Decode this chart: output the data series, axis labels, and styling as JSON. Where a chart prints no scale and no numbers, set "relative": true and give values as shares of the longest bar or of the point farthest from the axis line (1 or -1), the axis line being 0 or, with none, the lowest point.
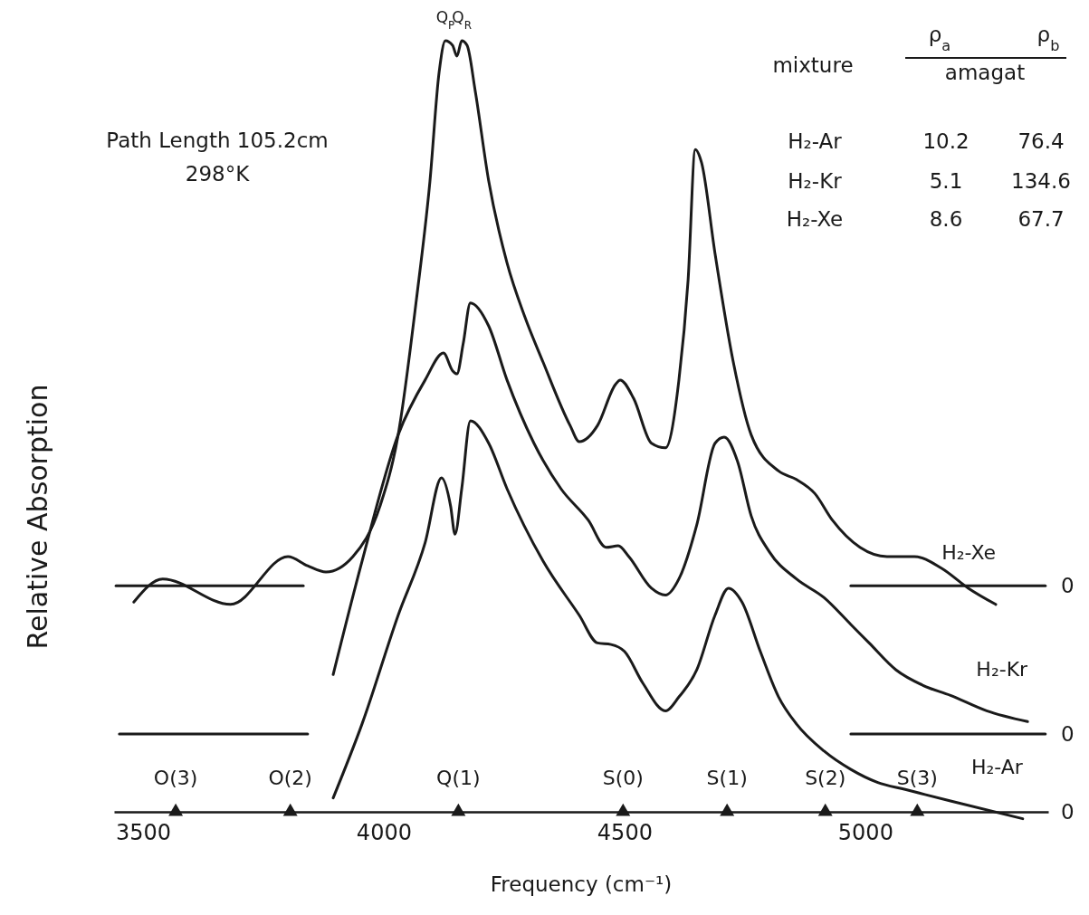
{
  "chart_data": {
    "type": "line",
    "relative": true,
    "xlabel": "Frequency  (cm⁻¹)",
    "ylabel": "Relative Absorption",
    "xlim": [
      3440,
      5380
    ],
    "xticks": [
      3500,
      4000,
      4500,
      5000
    ],
    "grid": false,
    "legend": false,
    "line_style": "solid",
    "series": [
      {
        "name": "H₂-Xe",
        "color": "#1a1a1a",
        "x": [
          3481,
          3541,
          3682,
          3801,
          3842,
          3880,
          3936,
          3992,
          4030,
          4068,
          4096,
          4115,
          4128,
          4143,
          4152,
          4162,
          4173,
          4190,
          4218,
          4256,
          4293,
          4331,
          4387,
          4406,
          4444,
          4481,
          4491,
          4519,
          4556,
          4585,
          4613,
          4632,
          4647,
          4660,
          4688,
          4726,
          4763,
          4820,
          4857,
          4895,
          4932,
          4989,
          5045,
          5102,
          5158,
          5214,
          5271
        ],
        "values": [
          0.272,
          0.302,
          0.269,
          0.331,
          0.319,
          0.311,
          0.331,
          0.396,
          0.489,
          0.665,
          0.818,
          0.959,
          1,
          0.994,
          0.98,
          1,
          0.994,
          0.935,
          0.818,
          0.712,
          0.642,
          0.583,
          0.501,
          0.48,
          0.501,
          0.554,
          0.56,
          0.536,
          0.478,
          0.472,
          0.56,
          0.689,
          0.859,
          0.842,
          0.724,
          0.583,
          0.489,
          0.442,
          0.431,
          0.413,
          0.378,
          0.343,
          0.331,
          0.331,
          0.316,
          0.29,
          0.269
        ]
      },
      {
        "name": "H₂-Kr",
        "color": "#1a1a1a",
        "x": [
          3895,
          3955,
          4030,
          4086,
          4124,
          4143,
          4152,
          4165,
          4180,
          4218,
          4256,
          4312,
          4368,
          4425,
          4462,
          4487,
          4509,
          4556,
          4585,
          4613,
          4650,
          4688,
          4707,
          4735,
          4763,
          4801,
          4857,
          4914,
          4970,
          5008,
          5064,
          5120,
          5177,
          5252,
          5337
        ],
        "values": [
          0.178,
          0.325,
          0.489,
          0.56,
          0.595,
          0.572,
          0.568,
          0.607,
          0.66,
          0.63,
          0.56,
          0.478,
          0.419,
          0.378,
          0.343,
          0.345,
          0.331,
          0.29,
          0.281,
          0.302,
          0.372,
          0.478,
          0.486,
          0.454,
          0.384,
          0.337,
          0.302,
          0.278,
          0.243,
          0.219,
          0.184,
          0.164,
          0.151,
          0.131,
          0.117
        ]
      },
      {
        "name": "H₂-Ar",
        "color": "#1a1a1a",
        "x": [
          3895,
          3955,
          4030,
          4086,
          4120,
          4139,
          4148,
          4162,
          4180,
          4218,
          4256,
          4331,
          4406,
          4444,
          4472,
          4500,
          4538,
          4585,
          4613,
          4650,
          4688,
          4716,
          4744,
          4782,
          4820,
          4857,
          4914,
          4970,
          5026,
          5083,
          5177,
          5327
        ],
        "values": [
          0.018,
          0.114,
          0.255,
          0.349,
          0.433,
          0.396,
          0.36,
          0.419,
          0.507,
          0.478,
          0.419,
          0.325,
          0.255,
          0.219,
          0.217,
          0.208,
          0.167,
          0.131,
          0.149,
          0.184,
          0.255,
          0.29,
          0.272,
          0.208,
          0.149,
          0.114,
          0.079,
          0.055,
          0.038,
          0.029,
          0.014,
          -0.009
        ]
      },
      {
        "type": "line",
        "color": "#1a1a1a",
        "x": [
          3444,
          3833
        ],
        "values": [
          0.293,
          0.293
        ]
      },
      {
        "type": "line",
        "color": "#1a1a1a",
        "x": [
          4970,
          5374
        ],
        "values": [
          0.293,
          0.293
        ]
      },
      {
        "type": "line",
        "color": "#1a1a1a",
        "x": [
          3451,
          3842
        ],
        "values": [
          0.101,
          0.101
        ]
      },
      {
        "type": "line",
        "color": "#1a1a1a",
        "x": [
          4970,
          5374
        ],
        "values": [
          0.101,
          0.101
        ]
      },
      {
        "type": "scatter",
        "marker": "triangle",
        "color": "#1a1a1a",
        "x": [
          3568,
          3806,
          4155,
          4497,
          4713,
          4917,
          5108
        ],
        "values": [
          0,
          0,
          0,
          0,
          0,
          0,
          0
        ]
      }
    ],
    "annotations": [
      "Path Length 105.2cm",
      "298°K",
      "mixture",
      "ρ$_{a}$",
      "ρ$_{b}$",
      "amagat",
      "H₂-Ar",
      "10.2",
      "76.4",
      "H₂-Kr",
      "5.1",
      "134.6",
      "H₂-Xe",
      "8.6",
      "67.7",
      {
        "text": "Q$_{P}$",
        "x": 4128,
        "y": 1
      },
      {
        "text": "Q$_{R}$",
        "x": 4162,
        "y": 1
      },
      {
        "text": "O(3)",
        "x": 3568,
        "y": 0
      },
      {
        "text": "O(2)",
        "x": 3806,
        "y": 0
      },
      {
        "text": "Q(1)",
        "x": 4155,
        "y": 0
      },
      {
        "text": "S(0)",
        "x": 4497,
        "y": 0
      },
      {
        "text": "S(1)",
        "x": 4713,
        "y": 0
      },
      {
        "text": "S(2)",
        "x": 4917,
        "y": 0
      },
      {
        "text": "S(3)",
        "x": 5108,
        "y": 0
      },
      {
        "text": "0",
        "x": 5380,
        "y": 0.293
      },
      {
        "text": "0",
        "x": 5380,
        "y": 0.101
      },
      "0"
    ]
  }
}
